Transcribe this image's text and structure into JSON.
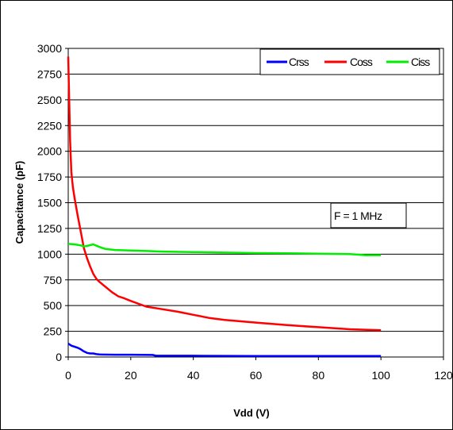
{
  "chart_data": {
    "type": "line",
    "title": "",
    "xlabel": "Vdd (V)",
    "ylabel": "Capacitance (pF)",
    "xlim": [
      0,
      120
    ],
    "ylim": [
      0,
      3000
    ],
    "xticks": [
      0,
      20,
      40,
      60,
      80,
      100,
      120
    ],
    "yticks": [
      0,
      250,
      500,
      750,
      1000,
      1250,
      1500,
      1750,
      2000,
      2250,
      2500,
      2750,
      3000
    ],
    "grid": "horizontal",
    "legend_position": "top-right",
    "annotation": "F = 1 MHz",
    "series": [
      {
        "name": "Crss",
        "color": "#0000ff",
        "x": [
          0,
          0.5,
          1,
          2,
          3,
          4,
          5,
          6,
          7,
          8,
          9,
          10,
          15,
          20,
          27,
          28,
          40,
          60,
          80,
          100
        ],
        "y": [
          130,
          120,
          110,
          100,
          90,
          75,
          55,
          40,
          35,
          35,
          28,
          25,
          22,
          22,
          20,
          12,
          12,
          10,
          10,
          10
        ]
      },
      {
        "name": "Coss",
        "color": "#ff0000",
        "x": [
          0,
          0.3,
          0.6,
          1,
          1.5,
          2,
          3,
          4,
          5,
          6,
          7,
          8,
          9,
          10,
          12,
          14,
          16,
          18,
          20,
          25,
          30,
          35,
          40,
          45,
          50,
          60,
          70,
          80,
          90,
          100
        ],
        "y": [
          2920,
          2500,
          2100,
          1800,
          1650,
          1550,
          1380,
          1220,
          1060,
          960,
          880,
          810,
          760,
          730,
          680,
          630,
          590,
          570,
          545,
          490,
          465,
          440,
          410,
          380,
          360,
          335,
          310,
          290,
          270,
          260
        ]
      },
      {
        "name": "Ciss",
        "color": "#00ee00",
        "x": [
          0,
          2,
          4,
          5,
          6,
          8,
          10,
          12,
          15,
          20,
          25,
          30,
          40,
          50,
          60,
          70,
          80,
          90,
          95,
          100
        ],
        "y": [
          1100,
          1095,
          1085,
          1075,
          1080,
          1095,
          1070,
          1050,
          1040,
          1035,
          1030,
          1025,
          1020,
          1015,
          1010,
          1008,
          1005,
          1000,
          990,
          990
        ]
      }
    ]
  }
}
